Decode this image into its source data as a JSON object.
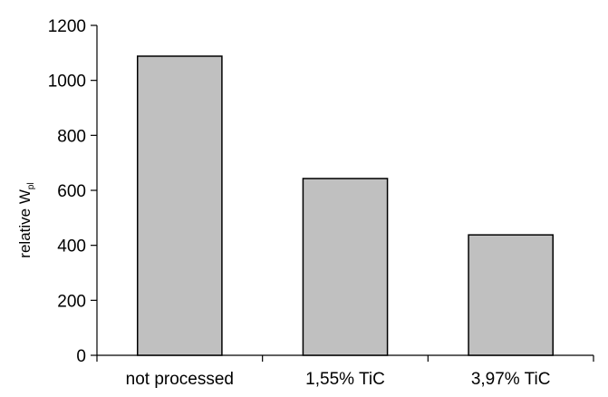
{
  "chart_data": {
    "type": "bar",
    "categories": [
      "not processed",
      "1,55% TiC",
      "3,97% TiC"
    ],
    "values": [
      1088,
      643,
      438
    ],
    "ylabel": "relative W",
    "ylabel_subscript": "pl",
    "xlabel": "",
    "ylim": [
      0,
      1200
    ],
    "yticks": [
      "0",
      "200",
      "400",
      "600",
      "800",
      "1000",
      "1200"
    ],
    "grid": false,
    "bar_color": "#c0c0c0",
    "bar_edge_color": "#000000"
  }
}
